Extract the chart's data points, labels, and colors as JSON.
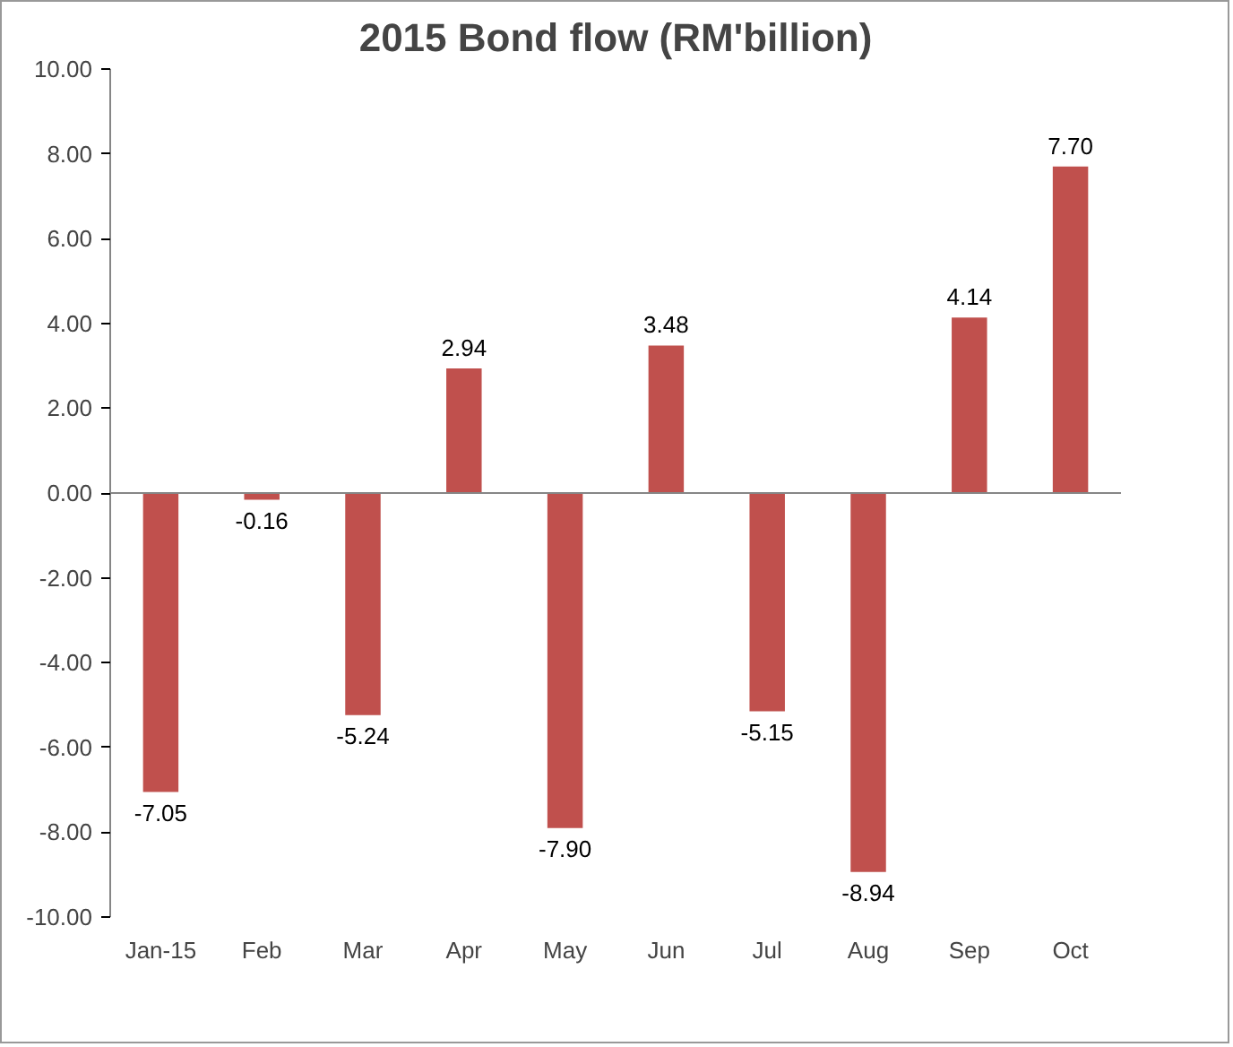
{
  "chart_data": {
    "type": "bar",
    "title": "2015 Bond flow (RM'billion)",
    "categories": [
      "Jan-15",
      "Feb",
      "Mar",
      "Apr",
      "May",
      "Jun",
      "Jul",
      "Aug",
      "Sep",
      "Oct"
    ],
    "values": [
      -7.05,
      -0.16,
      -5.24,
      2.94,
      -7.9,
      3.48,
      -5.15,
      -8.94,
      4.14,
      7.7
    ],
    "value_labels": [
      "-7.05",
      "-0.16",
      "-5.24",
      "2.94",
      "-7.90",
      "3.48",
      "-5.15",
      "-8.94",
      "4.14",
      "7.70"
    ],
    "color": "#c0504d",
    "ylim": [
      -10,
      10
    ],
    "yticks": [
      {
        "value": -10,
        "label": "-10.00"
      },
      {
        "value": -8,
        "label": "-8.00"
      },
      {
        "value": -6,
        "label": "-6.00"
      },
      {
        "value": -4,
        "label": "-4.00"
      },
      {
        "value": -2,
        "label": "-2.00"
      },
      {
        "value": 0,
        "label": "0.00"
      },
      {
        "value": 2,
        "label": "2.00"
      },
      {
        "value": 4,
        "label": "4.00"
      },
      {
        "value": 6,
        "label": "6.00"
      },
      {
        "value": 8,
        "label": "8.00"
      },
      {
        "value": 10,
        "label": "10.00"
      }
    ],
    "orientation": "vertical"
  }
}
